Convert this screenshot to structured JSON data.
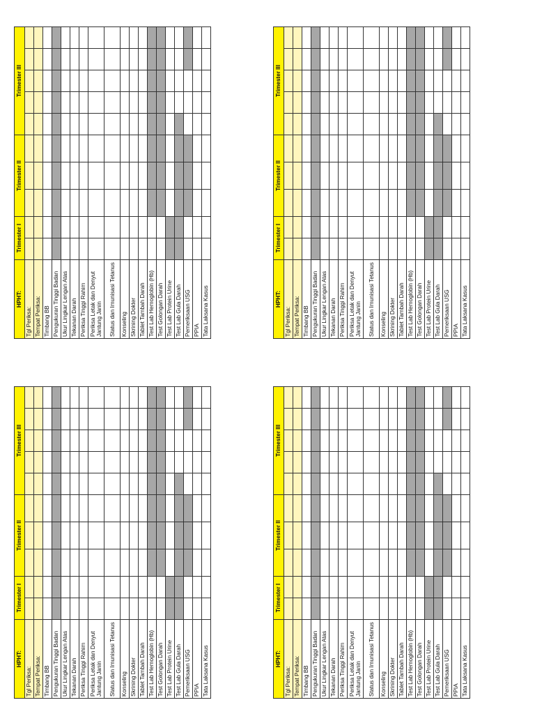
{
  "header": {
    "hpht": "HPHT:",
    "trimester_1": "Trimester I",
    "trimester_2": "Trimester II",
    "trimester_3": "Trimester III"
  },
  "rows": [
    {
      "label": "Tgl Periksa:"
    },
    {
      "label": "Tempat Periksa:"
    },
    {
      "label": "Timbang BB"
    },
    {
      "label": "Pengukuran Tinggi Badan"
    },
    {
      "label": "Ukur Lingkar Lengan Atas"
    },
    {
      "label": "Tekanan Darah"
    },
    {
      "label": "Periksa Tinggi Rahim"
    },
    {
      "label": "Periksa Letak dan Denyut Jantung Janin"
    },
    {
      "label": "Status dan Imunisasi Tetanus"
    },
    {
      "label": "Konseling"
    },
    {
      "label": "Skrining Dokter"
    },
    {
      "label": "Tablet Tambah Darah"
    },
    {
      "label": "Test Lab Hemoglobin (Hb)"
    },
    {
      "label": "Test Golongan Darah"
    },
    {
      "label": "Test Lab Protein Urine"
    },
    {
      "label": "Test Lab Gula Darah"
    },
    {
      "label": "Pemeriksaan USG"
    },
    {
      "label": "PPIA"
    },
    {
      "label": "Tata Laksana Kasus"
    }
  ],
  "colors": {
    "header_yellow": "#fff200",
    "row_yellow": "#fff6bd",
    "shade": "#a7a7a7"
  }
}
